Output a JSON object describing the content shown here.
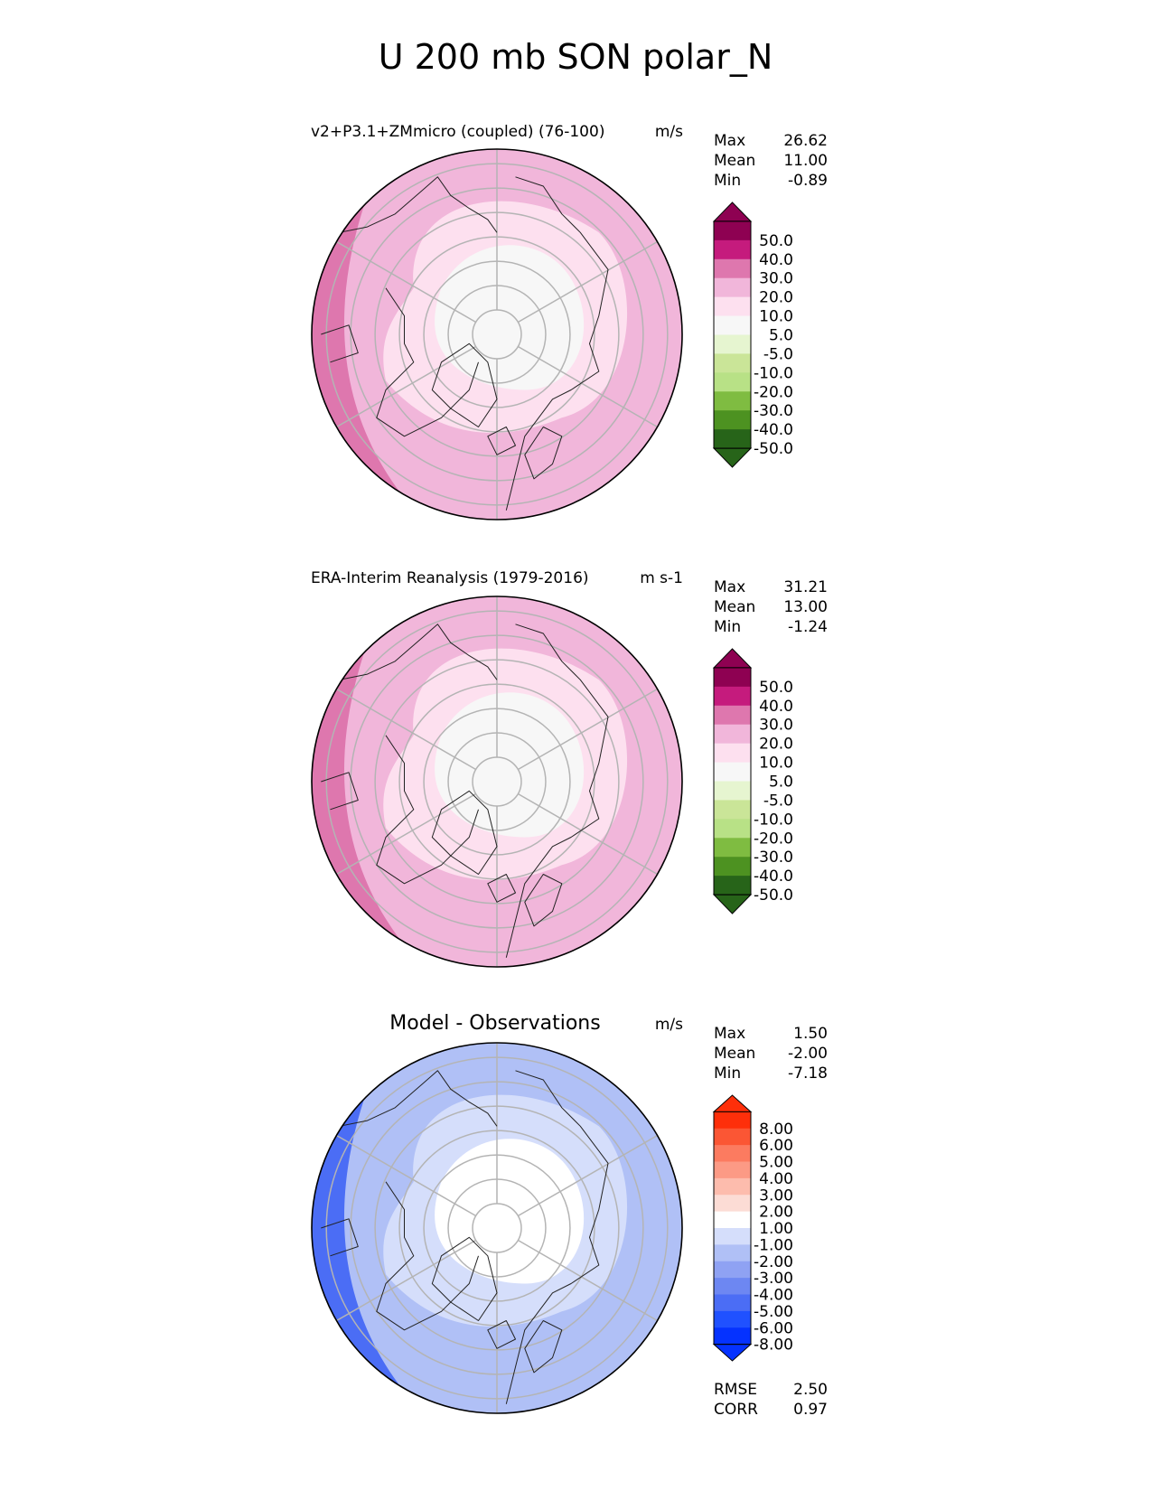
{
  "figure": {
    "title": "U 200 mb SON polar_N"
  },
  "stat_labels": {
    "max": "Max",
    "mean": "Mean",
    "min": "Min",
    "rmse": "RMSE",
    "corr": "CORR"
  },
  "chart_data": [
    {
      "type": "polar-contour-map",
      "title": "v2+P3.1+ZMmicro (coupled) (76-100)",
      "units": "m/s",
      "stats": {
        "max": "26.62",
        "mean": "11.00",
        "min": "-0.89"
      },
      "colorbar": {
        "tick_labels": [
          "50.0",
          "40.0",
          "30.0",
          "20.0",
          "10.0",
          "5.0",
          "-5.0",
          "-10.0",
          "-20.0",
          "-30.0",
          "-40.0",
          "-50.0"
        ],
        "colors": [
          "#276419",
          "#4d9221",
          "#7fbc41",
          "#b8e186",
          "#cae598",
          "#e6f5d0",
          "#f7f7f7",
          "#fde0ef",
          "#f1b6da",
          "#de77ae",
          "#c51b7d",
          "#8e0152"
        ],
        "lower_extend": "#276419",
        "upper_extend": "#8e0152"
      },
      "field_zones": [
        "#f7f7f7",
        "#fde0ef",
        "#f1b6da",
        "#f1b6da",
        "#de77ae"
      ]
    },
    {
      "type": "polar-contour-map",
      "title": "ERA-Interim Reanalysis (1979-2016)",
      "units": "m s-1",
      "stats": {
        "max": "31.21",
        "mean": "13.00",
        "min": "-1.24"
      },
      "colorbar": {
        "tick_labels": [
          "50.0",
          "40.0",
          "30.0",
          "20.0",
          "10.0",
          "5.0",
          "-5.0",
          "-10.0",
          "-20.0",
          "-30.0",
          "-40.0",
          "-50.0"
        ],
        "colors": [
          "#276419",
          "#4d9221",
          "#7fbc41",
          "#b8e186",
          "#cae598",
          "#e6f5d0",
          "#f7f7f7",
          "#fde0ef",
          "#f1b6da",
          "#de77ae",
          "#c51b7d",
          "#8e0152"
        ],
        "lower_extend": "#276419",
        "upper_extend": "#8e0152"
      },
      "field_zones": [
        "#f7f7f7",
        "#fde0ef",
        "#f1b6da",
        "#e99bc7",
        "#de77ae"
      ]
    },
    {
      "type": "polar-contour-map",
      "title": "Model - Observations",
      "units": "m/s",
      "stats": {
        "max": "1.50",
        "mean": "-2.00",
        "min": "-7.18"
      },
      "colorbar": {
        "tick_labels": [
          "8.00",
          "6.00",
          "5.00",
          "4.00",
          "3.00",
          "2.00",
          "1.00",
          "-1.00",
          "-2.00",
          "-3.00",
          "-4.00",
          "-5.00",
          "-6.00",
          "-8.00"
        ],
        "colors": [
          "#0532ff",
          "#2051ff",
          "#4b6df5",
          "#6d87f2",
          "#8fa2f3",
          "#b0c0f6",
          "#d5defb",
          "#ffffff",
          "#fcdcd5",
          "#fdbcad",
          "#fc9a85",
          "#fc7b60",
          "#fb5634",
          "#fe2f0a"
        ],
        "lower_extend": "#0532ff",
        "upper_extend": "#fe2f0a"
      },
      "field_zones": [
        "#ffffff",
        "#d5defb",
        "#b0c0f6",
        "#8fa2f3",
        "#4b6df5"
      ],
      "rmse": "2.50",
      "corr": "0.97"
    }
  ]
}
